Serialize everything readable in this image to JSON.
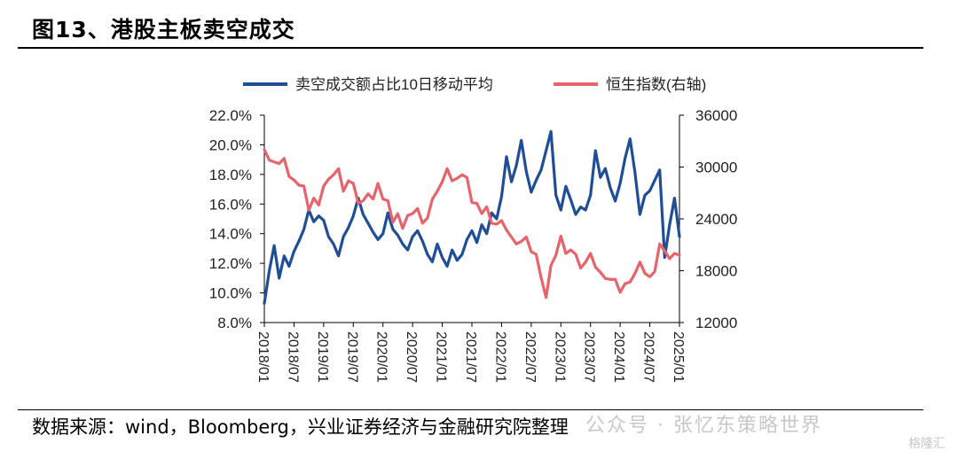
{
  "title": "图13、港股主板卖空成交",
  "source": "数据来源：wind，Bloomberg，兴业证券经济与金融研究院整理",
  "watermark": "公众号 · 张忆东策略世界",
  "watermark_logo": "格隆汇",
  "chart_data": {
    "type": "line",
    "title": "",
    "legend_position": "top",
    "grid": false,
    "x_start": "2018/01",
    "x_end": "2025/01",
    "x_tick_labels": [
      "2018/01",
      "2018/07",
      "2019/01",
      "2019/07",
      "2020/01",
      "2020/07",
      "2021/01",
      "2021/07",
      "2022/01",
      "2022/07",
      "2023/01",
      "2023/07",
      "2024/01",
      "2024/07",
      "2025/01"
    ],
    "y_left": {
      "min": 8,
      "max": 22,
      "step": 2,
      "tick_labels": [
        "8.0%",
        "10.0%",
        "12.0%",
        "14.0%",
        "16.0%",
        "18.0%",
        "20.0%",
        "22.0%"
      ]
    },
    "y_right": {
      "min": 12000,
      "max": 36000,
      "step": 6000,
      "tick_labels": [
        "12000",
        "18000",
        "24000",
        "30000",
        "36000"
      ]
    },
    "series": [
      {
        "name": "卖空成交额占比10日移动平均",
        "axis": "left",
        "color": "#1f4e96",
        "points": [
          [
            "2018/01",
            9.3
          ],
          [
            "2018/02",
            11.5
          ],
          [
            "2018/03",
            13.2
          ],
          [
            "2018/04",
            11.0
          ],
          [
            "2018/05",
            12.5
          ],
          [
            "2018/06",
            11.8
          ],
          [
            "2018/07",
            12.8
          ],
          [
            "2018/08",
            13.5
          ],
          [
            "2018/09",
            14.3
          ],
          [
            "2018/10",
            15.6
          ],
          [
            "2018/11",
            14.8
          ],
          [
            "2018/12",
            15.2
          ],
          [
            "2019/01",
            14.9
          ],
          [
            "2019/02",
            13.8
          ],
          [
            "2019/03",
            13.3
          ],
          [
            "2019/04",
            12.5
          ],
          [
            "2019/05",
            13.8
          ],
          [
            "2019/06",
            14.4
          ],
          [
            "2019/07",
            15.2
          ],
          [
            "2019/08",
            16.4
          ],
          [
            "2019/09",
            15.3
          ],
          [
            "2019/10",
            14.7
          ],
          [
            "2019/11",
            14.1
          ],
          [
            "2019/12",
            13.6
          ],
          [
            "2020/01",
            14.0
          ],
          [
            "2020/02",
            15.4
          ],
          [
            "2020/03",
            14.3
          ],
          [
            "2020/04",
            13.9
          ],
          [
            "2020/05",
            13.3
          ],
          [
            "2020/06",
            12.9
          ],
          [
            "2020/07",
            13.8
          ],
          [
            "2020/08",
            14.2
          ],
          [
            "2020/09",
            13.5
          ],
          [
            "2020/10",
            12.6
          ],
          [
            "2020/11",
            12.1
          ],
          [
            "2020/12",
            13.3
          ],
          [
            "2021/01",
            12.4
          ],
          [
            "2021/02",
            11.8
          ],
          [
            "2021/03",
            12.9
          ],
          [
            "2021/04",
            12.2
          ],
          [
            "2021/05",
            12.6
          ],
          [
            "2021/06",
            13.6
          ],
          [
            "2021/07",
            14.2
          ],
          [
            "2021/08",
            13.4
          ],
          [
            "2021/09",
            14.6
          ],
          [
            "2021/10",
            14.0
          ],
          [
            "2021/11",
            15.4
          ],
          [
            "2021/12",
            15.0
          ],
          [
            "2022/01",
            16.5
          ],
          [
            "2022/02",
            19.2
          ],
          [
            "2022/03",
            17.5
          ],
          [
            "2022/04",
            18.6
          ],
          [
            "2022/05",
            20.3
          ],
          [
            "2022/06",
            18.2
          ],
          [
            "2022/07",
            16.8
          ],
          [
            "2022/08",
            17.6
          ],
          [
            "2022/09",
            18.3
          ],
          [
            "2022/10",
            19.6
          ],
          [
            "2022/11",
            20.9
          ],
          [
            "2022/12",
            16.6
          ],
          [
            "2023/01",
            15.6
          ],
          [
            "2023/02",
            17.2
          ],
          [
            "2023/03",
            16.3
          ],
          [
            "2023/04",
            15.3
          ],
          [
            "2023/05",
            15.8
          ],
          [
            "2023/06",
            15.6
          ],
          [
            "2023/07",
            16.6
          ],
          [
            "2023/08",
            19.6
          ],
          [
            "2023/09",
            17.8
          ],
          [
            "2023/10",
            18.4
          ],
          [
            "2023/11",
            17.1
          ],
          [
            "2023/12",
            16.2
          ],
          [
            "2024/01",
            17.4
          ],
          [
            "2024/02",
            19.1
          ],
          [
            "2024/03",
            20.4
          ],
          [
            "2024/04",
            18.1
          ],
          [
            "2024/05",
            15.3
          ],
          [
            "2024/06",
            16.6
          ],
          [
            "2024/07",
            16.9
          ],
          [
            "2024/08",
            17.6
          ],
          [
            "2024/09",
            18.3
          ],
          [
            "2024/10",
            12.4
          ],
          [
            "2024/11",
            14.6
          ],
          [
            "2024/12",
            16.4
          ],
          [
            "2025/01",
            13.8
          ]
        ]
      },
      {
        "name": "恒生指数(右轴)",
        "axis": "right",
        "color": "#e8636b",
        "points": [
          [
            "2018/01",
            32000
          ],
          [
            "2018/02",
            30800
          ],
          [
            "2018/03",
            30600
          ],
          [
            "2018/04",
            30400
          ],
          [
            "2018/05",
            31000
          ],
          [
            "2018/06",
            28900
          ],
          [
            "2018/07",
            28500
          ],
          [
            "2018/08",
            27900
          ],
          [
            "2018/09",
            27800
          ],
          [
            "2018/10",
            25000
          ],
          [
            "2018/11",
            26400
          ],
          [
            "2018/12",
            25600
          ],
          [
            "2019/01",
            27800
          ],
          [
            "2019/02",
            28600
          ],
          [
            "2019/03",
            29100
          ],
          [
            "2019/04",
            29800
          ],
          [
            "2019/05",
            27200
          ],
          [
            "2019/06",
            28400
          ],
          [
            "2019/07",
            28100
          ],
          [
            "2019/08",
            25800
          ],
          [
            "2019/09",
            26100
          ],
          [
            "2019/10",
            26900
          ],
          [
            "2019/11",
            26300
          ],
          [
            "2019/12",
            28100
          ],
          [
            "2020/01",
            26300
          ],
          [
            "2020/02",
            26100
          ],
          [
            "2020/03",
            23600
          ],
          [
            "2020/04",
            24600
          ],
          [
            "2020/05",
            22900
          ],
          [
            "2020/06",
            24400
          ],
          [
            "2020/07",
            24600
          ],
          [
            "2020/08",
            25200
          ],
          [
            "2020/09",
            23500
          ],
          [
            "2020/10",
            24100
          ],
          [
            "2020/11",
            26300
          ],
          [
            "2020/12",
            27200
          ],
          [
            "2021/01",
            28300
          ],
          [
            "2021/02",
            29800
          ],
          [
            "2021/03",
            28400
          ],
          [
            "2021/04",
            28700
          ],
          [
            "2021/05",
            29100
          ],
          [
            "2021/06",
            28800
          ],
          [
            "2021/07",
            25900
          ],
          [
            "2021/08",
            25800
          ],
          [
            "2021/09",
            24600
          ],
          [
            "2021/10",
            25400
          ],
          [
            "2021/11",
            23500
          ],
          [
            "2021/12",
            23400
          ],
          [
            "2022/01",
            23800
          ],
          [
            "2022/02",
            22700
          ],
          [
            "2022/03",
            21900
          ],
          [
            "2022/04",
            21100
          ],
          [
            "2022/05",
            21400
          ],
          [
            "2022/06",
            21900
          ],
          [
            "2022/07",
            20200
          ],
          [
            "2022/08",
            19900
          ],
          [
            "2022/09",
            17200
          ],
          [
            "2022/10",
            14900
          ],
          [
            "2022/11",
            18600
          ],
          [
            "2022/12",
            19800
          ],
          [
            "2023/01",
            22000
          ],
          [
            "2023/02",
            20000
          ],
          [
            "2023/03",
            20400
          ],
          [
            "2023/04",
            19900
          ],
          [
            "2023/05",
            18300
          ],
          [
            "2023/06",
            19000
          ],
          [
            "2023/07",
            20000
          ],
          [
            "2023/08",
            18400
          ],
          [
            "2023/09",
            17800
          ],
          [
            "2023/10",
            17100
          ],
          [
            "2023/11",
            17000
          ],
          [
            "2023/12",
            17000
          ],
          [
            "2024/01",
            15500
          ],
          [
            "2024/02",
            16500
          ],
          [
            "2024/03",
            16700
          ],
          [
            "2024/04",
            17700
          ],
          [
            "2024/05",
            19000
          ],
          [
            "2024/06",
            17700
          ],
          [
            "2024/07",
            17300
          ],
          [
            "2024/08",
            17900
          ],
          [
            "2024/09",
            21100
          ],
          [
            "2024/10",
            20300
          ],
          [
            "2024/11",
            19400
          ],
          [
            "2024/12",
            20000
          ],
          [
            "2025/01",
            19800
          ]
        ]
      }
    ]
  }
}
